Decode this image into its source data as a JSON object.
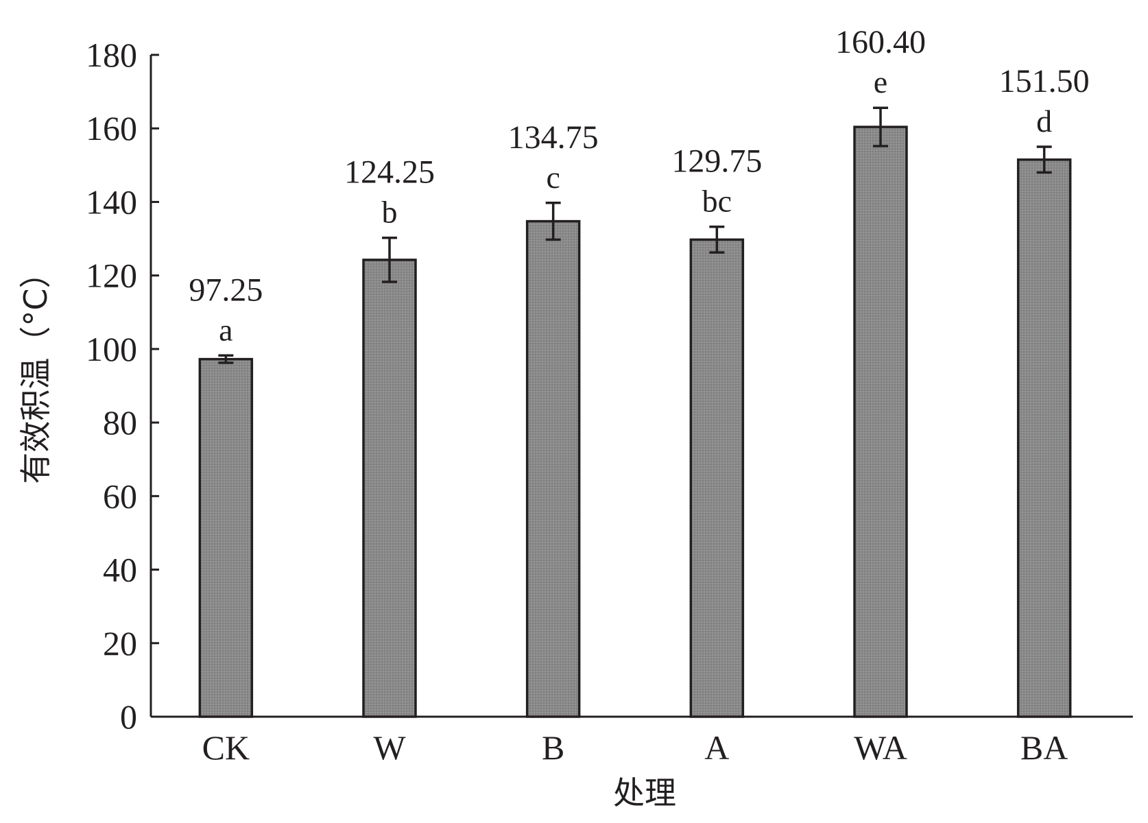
{
  "chart_data": {
    "type": "bar",
    "categories": [
      "CK",
      "W",
      "B",
      "A",
      "WA",
      "BA"
    ],
    "values": [
      97.25,
      124.25,
      134.75,
      129.75,
      160.4,
      151.5
    ],
    "value_labels": [
      "97.25",
      "124.25",
      "134.75",
      "129.75",
      "160.40",
      "151.50"
    ],
    "error": [
      1.0,
      6.0,
      5.0,
      3.5,
      5.2,
      3.5
    ],
    "significance": [
      "a",
      "b",
      "c",
      "bc",
      "e",
      "d"
    ],
    "xlabel": "处理",
    "ylabel": "有效积温（°C）",
    "ylim": [
      0,
      180
    ],
    "yticks": [
      0,
      20,
      40,
      60,
      80,
      100,
      120,
      140,
      160,
      180
    ],
    "grid": false,
    "legend": "none",
    "colors": {
      "bar": "#8a8a8a",
      "edge": "#231f20",
      "axis": "#231f20"
    }
  }
}
